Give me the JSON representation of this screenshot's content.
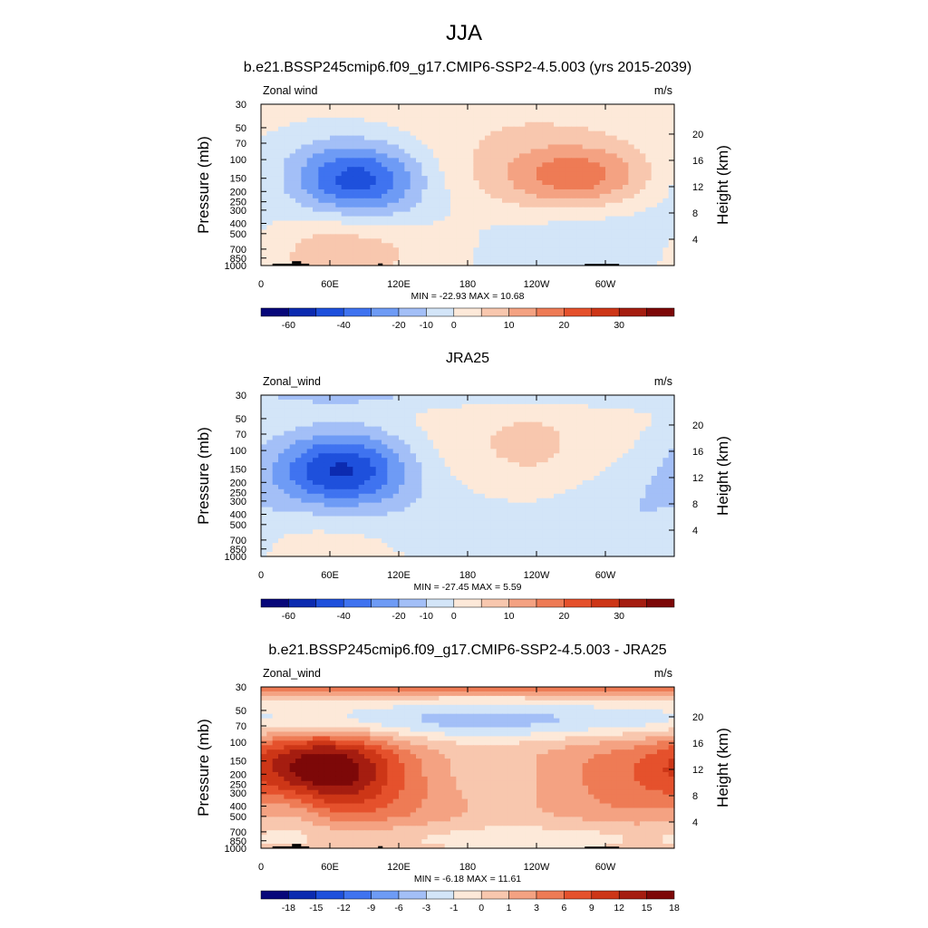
{
  "page_title": "JJA",
  "colors": {
    "scale": [
      "#08087a",
      "#0c2bb0",
      "#1e50dc",
      "#3f73f0",
      "#6e9bf5",
      "#a3bff7",
      "#d3e5f8",
      "#fde9d9",
      "#f8c7ae",
      "#f4a282",
      "#ee7b55",
      "#e5512c",
      "#cd3617",
      "#a51d10",
      "#7d0808"
    ],
    "land": "#000000",
    "frame": "#000000"
  },
  "chart_data": [
    {
      "type": "heatmap",
      "title": "b.e21.BSSP245cmip6.f09_g17.CMIP6-SSP2-4.5.003 (yrs 2015-2039)",
      "left_label": "Zonal wind",
      "units": "m/s",
      "ylabel": "Pressure (mb)",
      "y2label": "Height (km)",
      "xticks": [
        "0",
        "60E",
        "120E",
        "180",
        "120W",
        "60W"
      ],
      "yticks": [
        "30",
        "50",
        "70",
        "100",
        "150",
        "200",
        "250",
        "300",
        "400",
        "500",
        "700",
        "850",
        "1000"
      ],
      "y2ticks": [
        "20",
        "16",
        "12",
        "8",
        "4"
      ],
      "stats": "MIN = -22.93  MAX =  10.68",
      "colorbar_labels": [
        "-60",
        "-40",
        "-20",
        "-10",
        "0",
        "10",
        "20",
        "30"
      ],
      "min": -22.93,
      "max": 10.68
    },
    {
      "type": "heatmap",
      "title": "JRA25",
      "left_label": "Zonal_wind",
      "units": "m/s",
      "ylabel": "Pressure (mb)",
      "y2label": "Height (km)",
      "xticks": [
        "0",
        "60E",
        "120E",
        "180",
        "120W",
        "60W"
      ],
      "yticks": [
        "30",
        "50",
        "70",
        "100",
        "150",
        "200",
        "250",
        "300",
        "400",
        "500",
        "700",
        "850",
        "1000"
      ],
      "y2ticks": [
        "20",
        "16",
        "12",
        "8",
        "4"
      ],
      "stats": "MIN = -27.45  MAX =   5.59",
      "colorbar_labels": [
        "-60",
        "-40",
        "-20",
        "-10",
        "0",
        "10",
        "20",
        "30"
      ],
      "min": -27.45,
      "max": 5.59
    },
    {
      "type": "heatmap",
      "title": "b.e21.BSSP245cmip6.f09_g17.CMIP6-SSP2-4.5.003 - JRA25",
      "left_label": "Zonal_wind",
      "units": "m/s",
      "ylabel": "Pressure (mb)",
      "y2label": "Height (km)",
      "xticks": [
        "0",
        "60E",
        "120E",
        "180",
        "120W",
        "60W"
      ],
      "yticks": [
        "30",
        "50",
        "70",
        "100",
        "150",
        "200",
        "250",
        "300",
        "400",
        "500",
        "700",
        "850",
        "1000"
      ],
      "y2ticks": [
        "20",
        "16",
        "12",
        "8",
        "4"
      ],
      "stats": "MIN = -6.18  MAX =  11.61",
      "colorbar_labels": [
        "-18",
        "-15",
        "-12",
        "-9",
        "-6",
        "-3",
        "-1",
        "0",
        "1",
        "3",
        "6",
        "9",
        "12",
        "15",
        "18"
      ],
      "min": -6.18,
      "max": 11.61
    }
  ]
}
